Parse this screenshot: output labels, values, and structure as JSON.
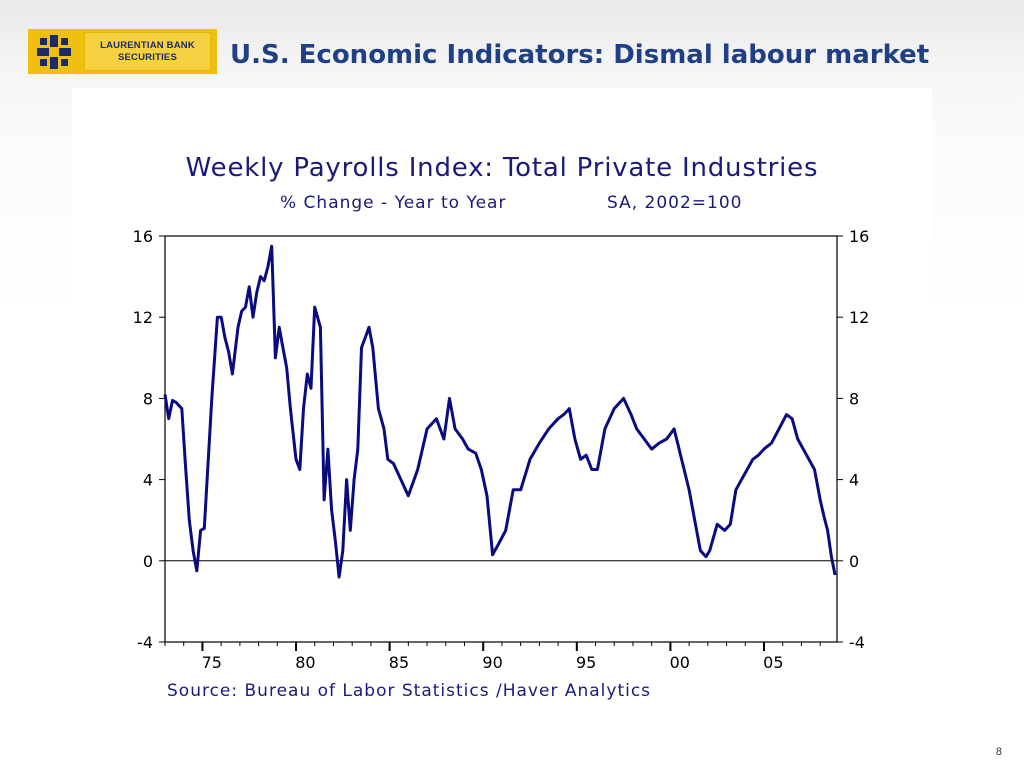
{
  "slide": {
    "title": "U.S. Economic Indicators: Dismal labour market",
    "page_number": "8",
    "logo": {
      "line1": "LAURENTIAN BANK",
      "line2": "SECURITIES"
    }
  },
  "colors": {
    "title": "#1f3f86",
    "series": "#0b0b80",
    "logo_bg": "#f0c010"
  },
  "chart_data": {
    "type": "line",
    "title": "Weekly Payrolls Index: Total Private Industries",
    "subtitle_left": "% Change - Year to Year",
    "subtitle_right": "SA, 2002=100",
    "source": "Source:  Bureau of Labor Statistics /Haver Analytics",
    "xlabel": "",
    "ylabel": "",
    "xlim": [
      1973.0,
      2008.9
    ],
    "ylim": [
      -4,
      16
    ],
    "y_ticks": [
      -4,
      0,
      4,
      8,
      12,
      16
    ],
    "y_tick_labels": [
      "-4",
      "0",
      "4",
      "8",
      "12",
      "16"
    ],
    "x_ticks": [
      1975,
      1980,
      1985,
      1990,
      1995,
      2000,
      2005
    ],
    "x_tick_labels": [
      "75",
      "80",
      "85",
      "90",
      "95",
      "00",
      "05"
    ],
    "zero_line": true,
    "grid": false,
    "legend": "none",
    "series": [
      {
        "x": [
          1973.0,
          1973.2,
          1973.4,
          1973.6,
          1973.9,
          1974.1,
          1974.3,
          1974.5,
          1974.7,
          1974.9,
          1975.1,
          1975.5,
          1975.8,
          1976.0,
          1976.2,
          1976.4,
          1976.6,
          1976.9,
          1977.1,
          1977.3,
          1977.5,
          1977.7,
          1977.9,
          1978.1,
          1978.3,
          1978.5,
          1978.7,
          1978.9,
          1979.1,
          1979.3,
          1979.5,
          1979.7,
          1980.0,
          1980.2,
          1980.4,
          1980.6,
          1980.8,
          1981.0,
          1981.3,
          1981.5,
          1981.7,
          1981.9,
          1982.1,
          1982.3,
          1982.5,
          1982.7,
          1982.9,
          1983.1,
          1983.3,
          1983.5,
          1983.7,
          1983.9,
          1984.1,
          1984.4,
          1984.7,
          1984.9,
          1985.2,
          1985.6,
          1986.0,
          1986.5,
          1987.0,
          1987.5,
          1987.9,
          1988.2,
          1988.5,
          1988.9,
          1989.2,
          1989.6,
          1989.9,
          1990.2,
          1990.5,
          1990.8,
          1991.2,
          1991.6,
          1992.0,
          1992.5,
          1993.0,
          1993.5,
          1994.0,
          1994.3,
          1994.6,
          1994.9,
          1995.2,
          1995.5,
          1995.8,
          1996.1,
          1996.5,
          1997.0,
          1997.5,
          1997.9,
          1998.2,
          1998.6,
          1999.0,
          1999.4,
          1999.8,
          2000.2,
          2000.6,
          2001.0,
          2001.3,
          2001.6,
          2001.9,
          2002.1,
          2002.5,
          2002.9,
          2003.2,
          2003.5,
          2003.8,
          2004.1,
          2004.4,
          2004.7,
          2005.0,
          2005.4,
          2005.8,
          2006.2,
          2006.5,
          2006.8,
          2007.1,
          2007.4,
          2007.7,
          2008.0,
          2008.2,
          2008.4,
          2008.6,
          2008.8
        ],
        "values": [
          8.2,
          7.0,
          7.9,
          7.8,
          7.5,
          4.6,
          2.0,
          0.5,
          -0.5,
          1.5,
          1.6,
          8.0,
          12.0,
          12.0,
          11.0,
          10.3,
          9.2,
          11.5,
          12.3,
          12.5,
          13.5,
          12.0,
          13.2,
          14.0,
          13.8,
          14.5,
          15.5,
          10.0,
          11.5,
          10.5,
          9.5,
          7.5,
          5.0,
          4.5,
          7.5,
          9.2,
          8.5,
          12.5,
          11.5,
          3.0,
          5.5,
          2.5,
          1.0,
          -0.8,
          0.5,
          4.0,
          1.5,
          4.0,
          5.5,
          10.5,
          11.0,
          11.5,
          10.5,
          7.5,
          6.5,
          5.0,
          4.8,
          4.0,
          3.2,
          4.5,
          6.5,
          7.0,
          6.0,
          8.0,
          6.5,
          6.0,
          5.5,
          5.3,
          4.5,
          3.2,
          0.3,
          0.8,
          1.5,
          3.5,
          3.5,
          5.0,
          5.8,
          6.5,
          7.0,
          7.2,
          7.5,
          6.0,
          5.0,
          5.2,
          4.5,
          4.5,
          6.5,
          7.5,
          8.0,
          7.2,
          6.5,
          6.0,
          5.5,
          5.8,
          6.0,
          6.5,
          5.0,
          3.5,
          2.0,
          0.5,
          0.2,
          0.5,
          1.8,
          1.5,
          1.8,
          3.5,
          4.0,
          4.5,
          5.0,
          5.2,
          5.5,
          5.8,
          6.5,
          7.2,
          7.0,
          6.0,
          5.5,
          5.0,
          4.5,
          3.0,
          2.2,
          1.5,
          0.2,
          -0.7
        ]
      }
    ]
  }
}
